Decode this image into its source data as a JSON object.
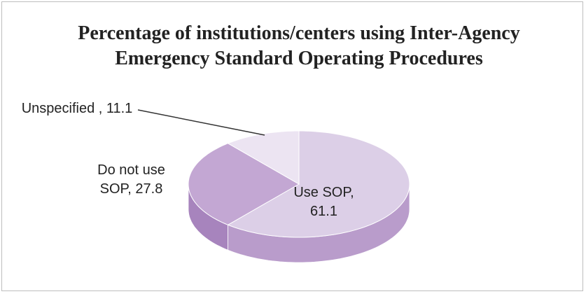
{
  "chart_data": {
    "type": "pie",
    "title": "Percentage of institutions/centers using Inter-Agency Emergency Standard Operating Procedures",
    "categories": [
      "Use SOP",
      "Do not use SOP",
      "Unspecified"
    ],
    "values": [
      61.1,
      27.8,
      11.1
    ],
    "value_labels": [
      "Use SOP, 61.1",
      "Do not use SOP, 27.8",
      "Unspecified , 11.1"
    ],
    "colors": [
      "#dccfe7",
      "#c3a7d3",
      "#ece4f2"
    ],
    "side_colors": [
      "#b99ccb",
      "#a784bd",
      "#cdb9da"
    ]
  }
}
